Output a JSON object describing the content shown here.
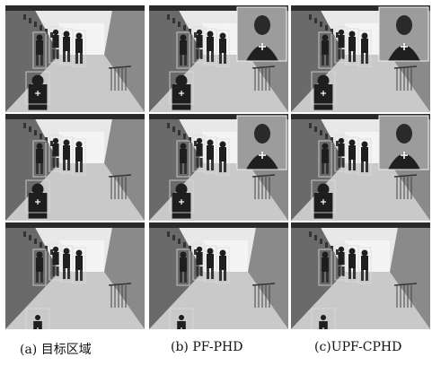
{
  "figure": {
    "captions": [
      {
        "id": "a",
        "text": "(a)  目标区域"
      },
      {
        "id": "b",
        "text": "(b) PF-PHD"
      },
      {
        "id": "c",
        "text": "(c)UPF-CPHD"
      }
    ],
    "rows": [
      {
        "frames": [
          {
            "column": "a",
            "inset": false,
            "people": 4
          },
          {
            "column": "b",
            "inset": true,
            "people": 4
          },
          {
            "column": "c",
            "inset": true,
            "people": 4
          }
        ]
      },
      {
        "frames": [
          {
            "column": "a",
            "inset": false,
            "people": 4
          },
          {
            "column": "b",
            "inset": true,
            "people": 4
          },
          {
            "column": "c",
            "inset": true,
            "people": 4
          }
        ]
      },
      {
        "frames": [
          {
            "column": "a",
            "inset": false,
            "people": 4
          },
          {
            "column": "b",
            "inset": false,
            "people": 4
          },
          {
            "column": "c",
            "inset": false,
            "people": 4
          }
        ]
      }
    ],
    "colors": {
      "box": "#dcdcdc",
      "floor": "#c9c9c9",
      "wall": "#e8e8e8",
      "dark": "#1e1e1e"
    }
  }
}
